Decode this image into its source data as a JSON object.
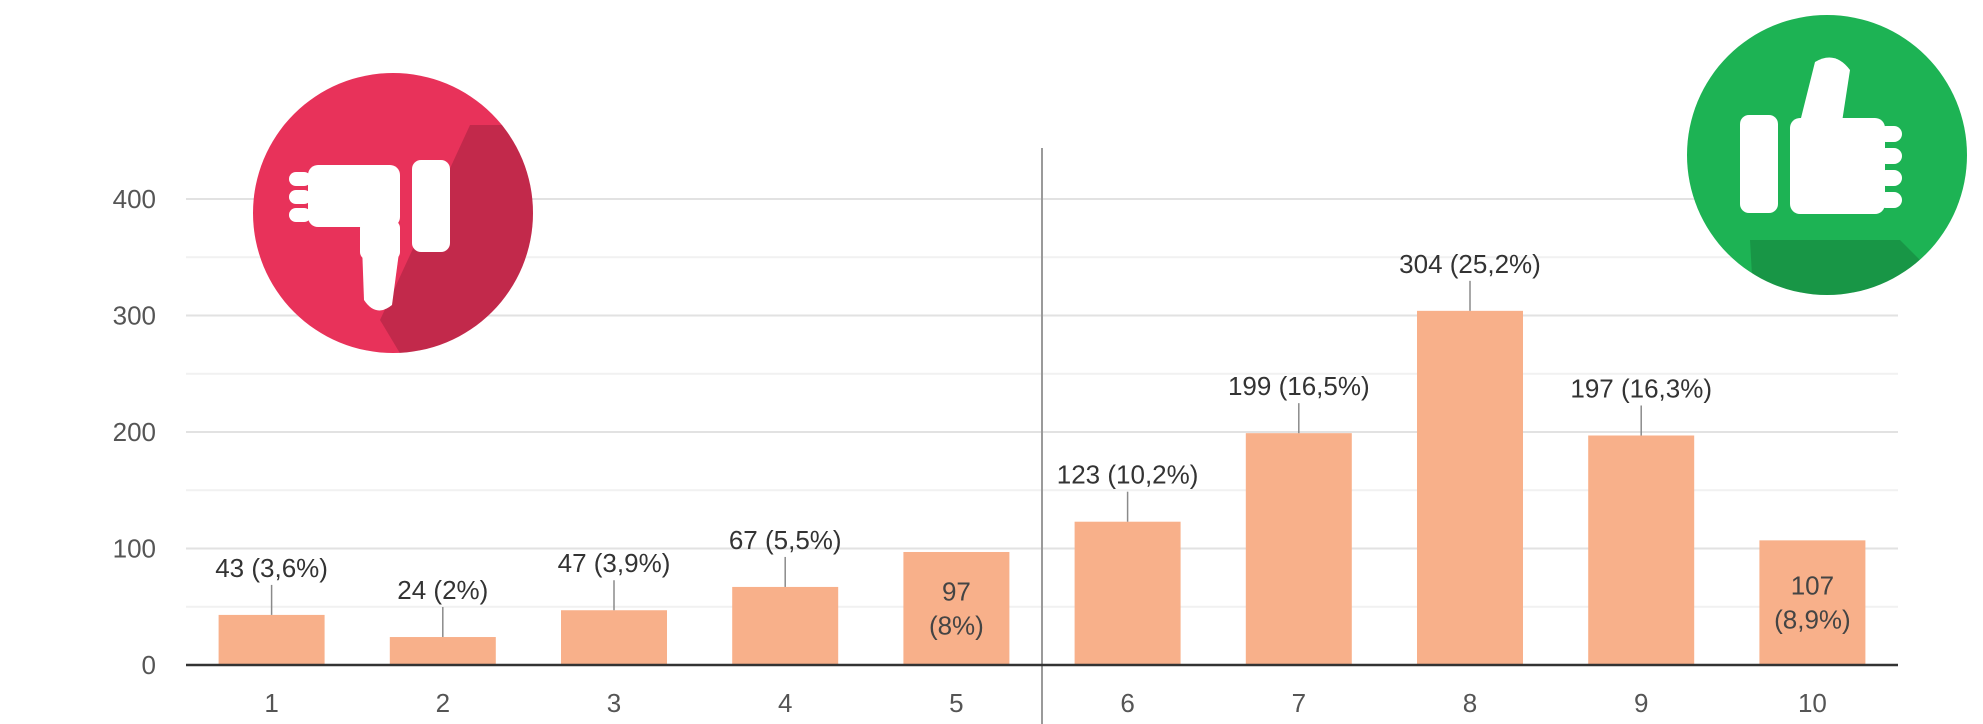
{
  "chart_data": {
    "type": "bar",
    "title": "",
    "xlabel": "",
    "ylabel": "",
    "categories": [
      "1",
      "2",
      "3",
      "4",
      "5",
      "6",
      "7",
      "8",
      "9",
      "10"
    ],
    "values": [
      43,
      24,
      47,
      67,
      97,
      123,
      199,
      304,
      197,
      107
    ],
    "labels": [
      "43 (3,6%)",
      "24 (2%)",
      "47 (3,9%)",
      "67 (5,5%)",
      "97 (8%)",
      "123 (10,2%)",
      "199 (16,5%)",
      "304 (25,2%)",
      "197 (16,3%)",
      "107 (8,9%)"
    ],
    "yticks": [
      "0",
      "100",
      "200",
      "300",
      "400"
    ],
    "ylim": [
      0,
      400
    ],
    "grid": true,
    "divider_between": [
      "5",
      "6"
    ],
    "bar_color": "#f8b08a"
  },
  "icons": {
    "negative": {
      "name": "thumbs-down-icon",
      "color": "#e8325a"
    },
    "positive": {
      "name": "thumbs-up-icon",
      "color": "#1db354"
    }
  }
}
